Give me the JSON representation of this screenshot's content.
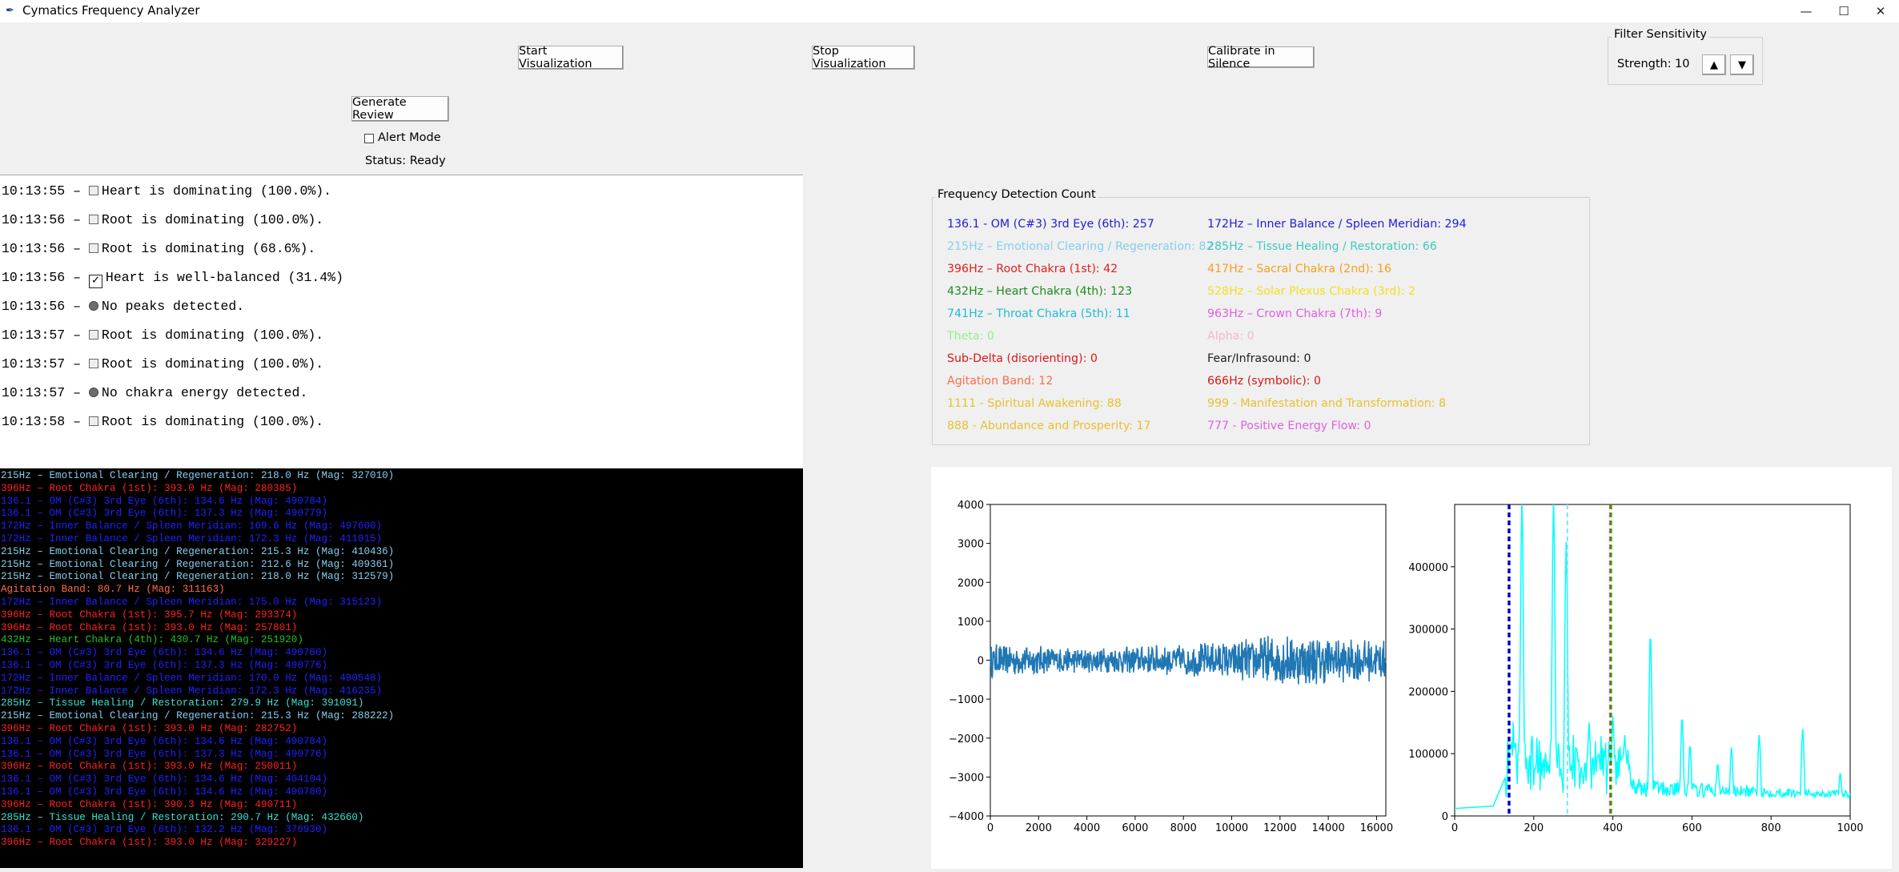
{
  "window": {
    "title": "Cymatics Frequency Analyzer",
    "controls": {
      "minimize": "—",
      "maximize": "☐",
      "close": "✕"
    }
  },
  "toolbar": {
    "start_label": "Start Visualization",
    "stop_label": "Stop Visualization",
    "calibrate_label": "Calibrate in Silence",
    "review_label": "Generate Review",
    "alert_label": "Alert Mode",
    "status": "Status: Ready"
  },
  "filter": {
    "title": "Filter Sensitivity",
    "strength_label": "Strength:",
    "strength_value": "10",
    "up_label": "▲",
    "down_label": "▼"
  },
  "log": [
    {
      "time": "10:13:55 –",
      "icon": "square",
      "text": "Heart is dominating (100.0%)."
    },
    {
      "time": "10:13:56 –",
      "icon": "square",
      "text": "Root is dominating (100.0%)."
    },
    {
      "time": "10:13:56 –",
      "icon": "square",
      "text": "Root is dominating (68.6%)."
    },
    {
      "time": "10:13:56 –",
      "icon": "check",
      "text": "Heart is well-balanced (31.4%)"
    },
    {
      "time": "10:13:56 –",
      "icon": "dot",
      "text": "No peaks detected."
    },
    {
      "time": "10:13:57 –",
      "icon": "square",
      "text": "Root is dominating (100.0%)."
    },
    {
      "time": "10:13:57 –",
      "icon": "square",
      "text": "Root is dominating (100.0%)."
    },
    {
      "time": "10:13:57 –",
      "icon": "dot",
      "text": "No chakra energy detected."
    },
    {
      "time": "10:13:58 –",
      "icon": "square",
      "text": "Root is dominating (100.0%)."
    }
  ],
  "console": [
    {
      "text": "215Hz – Emotional Clearing / Regeneration: 218.0 Hz (Mag: 327010)",
      "color": "#87ceeb"
    },
    {
      "text": "396Hz – Root Chakra (1st): 393.0 Hz (Mag: 280385)",
      "color": "#ff2020"
    },
    {
      "text": "136.1 – OM (C#3) 3rd Eye (6th): 134.6 Hz (Mag: 490784)",
      "color": "#2020ff"
    },
    {
      "text": "136.1 – OM (C#3) 3rd Eye (6th): 137.3 Hz (Mag: 490779)",
      "color": "#2020ff"
    },
    {
      "text": "172Hz – Inner Balance / Spleen Meridian: 169.6 Hz (Mag: 497600)",
      "color": "#2020ff"
    },
    {
      "text": "172Hz – Inner Balance / Spleen Meridian: 172.3 Hz (Mag: 411015)",
      "color": "#2020ff"
    },
    {
      "text": "215Hz – Emotional Clearing / Regeneration: 215.3 Hz (Mag: 410436)",
      "color": "#87ceeb"
    },
    {
      "text": "215Hz – Emotional Clearing / Regeneration: 212.6 Hz (Mag: 409361)",
      "color": "#87ceeb"
    },
    {
      "text": "215Hz – Emotional Clearing / Regeneration: 218.0 Hz (Mag: 312579)",
      "color": "#87ceeb"
    },
    {
      "text": "Agitation Band: 80.7 Hz (Mag: 311163)",
      "color": "#ff6b4a"
    },
    {
      "text": "172Hz – Inner Balance / Spleen Meridian: 175.0 Hz (Mag: 315123)",
      "color": "#2020ff"
    },
    {
      "text": "396Hz – Root Chakra (1st): 395.7 Hz (Mag: 293374)",
      "color": "#ff2020"
    },
    {
      "text": "396Hz – Root Chakra (1st): 393.0 Hz (Mag: 257801)",
      "color": "#ff2020"
    },
    {
      "text": "432Hz – Heart Chakra (4th): 430.7 Hz (Mag: 251920)",
      "color": "#22c022"
    },
    {
      "text": "136.1 – OM (C#3) 3rd Eye (6th): 134.6 Hz (Mag: 490780)",
      "color": "#2020ff"
    },
    {
      "text": "136.1 – OM (C#3) 3rd Eye (6th): 137.3 Hz (Mag: 490776)",
      "color": "#2020ff"
    },
    {
      "text": "172Hz – Inner Balance / Spleen Meridian: 170.0 Hz (Mag: 490548)",
      "color": "#2020ff"
    },
    {
      "text": "172Hz – Inner Balance / Spleen Meridian: 172.3 Hz (Mag: 416235)",
      "color": "#2020ff"
    },
    {
      "text": "285Hz – Tissue Healing / Restoration: 279.9 Hz (Mag: 391091)",
      "color": "#40e0d0"
    },
    {
      "text": "215Hz – Emotional Clearing / Regeneration: 215.3 Hz (Mag: 288222)",
      "color": "#87ceeb"
    },
    {
      "text": "396Hz – Root Chakra (1st): 393.0 Hz (Mag: 282752)",
      "color": "#ff2020"
    },
    {
      "text": "136.1 – OM (C#3) 3rd Eye (6th): 134.6 Hz (Mag: 490784)",
      "color": "#2020ff"
    },
    {
      "text": "136.1 – OM (C#3) 3rd Eye (6th): 137.3 Hz (Mag: 490776)",
      "color": "#2020ff"
    },
    {
      "text": "396Hz – Root Chakra (1st): 393.0 Hz (Mag: 250011)",
      "color": "#ff2020"
    },
    {
      "text": "136.1 – OM (C#3) 3rd Eye (6th): 134.6 Hz (Mag: 404104)",
      "color": "#2020ff"
    },
    {
      "text": "136.1 – OM (C#3) 3rd Eye (6th): 134.6 Hz (Mag: 490780)",
      "color": "#2020ff"
    },
    {
      "text": "396Hz – Root Chakra (1st): 390.3 Hz (Mag: 490711)",
      "color": "#ff2020"
    },
    {
      "text": "285Hz – Tissue Healing / Restoration: 290.7 Hz (Mag: 432660)",
      "color": "#40e0d0"
    },
    {
      "text": "136.1 – OM (C#3) 3rd Eye (6th): 132.2 Hz (Mag: 376930)",
      "color": "#2020ff"
    },
    {
      "text": "396Hz – Root Chakra (1st): 393.0 Hz (Mag: 329227)",
      "color": "#ff2020"
    }
  ],
  "frequency": {
    "title": "Frequency Detection Count",
    "left": [
      {
        "text": "136.1 - OM (C#3) 3rd Eye (6th): 257",
        "color": "#1f1fd0"
      },
      {
        "text": "215Hz – Emotional Clearing / Regeneration: 82",
        "color": "#87ceeb"
      },
      {
        "text": "396Hz – Root Chakra (1st): 42",
        "color": "#e02020"
      },
      {
        "text": "432Hz – Heart Chakra (4th): 123",
        "color": "#1e8c1e"
      },
      {
        "text": "741Hz – Throat Chakra (5th): 11",
        "color": "#1fbcd4"
      },
      {
        "text": "Theta: 0",
        "color": "#90ee90"
      },
      {
        "text": "Sub-Delta (disorienting): 0",
        "color": "#d81818"
      },
      {
        "text": "Agitation Band: 12",
        "color": "#ff6b4a"
      },
      {
        "text": "1111 - Spiritual Awakening: 88",
        "color": "#e8c030"
      },
      {
        "text": "888 - Abundance and Prosperity: 17",
        "color": "#e8c030"
      }
    ],
    "right": [
      {
        "text": "172Hz – Inner Balance / Spleen Meridian: 294",
        "color": "#1f1fd0"
      },
      {
        "text": "285Hz – Tissue Healing / Restoration: 66",
        "color": "#40c8c0"
      },
      {
        "text": "417Hz – Sacral Chakra (2nd): 16",
        "color": "#f5a020"
      },
      {
        "text": "528Hz – Solar Plexus Chakra (3rd): 2",
        "color": "#f0e020"
      },
      {
        "text": "963Hz – Crown Chakra (7th): 9",
        "color": "#e060e0"
      },
      {
        "text": "Alpha: 0",
        "color": "#f4b8c8"
      },
      {
        "text": "Fear/Infrasound: 0",
        "color": "#202020"
      },
      {
        "text": "666Hz (symbolic): 0",
        "color": "#d81818"
      },
      {
        "text": "999 - Manifestation and Transformation: 8",
        "color": "#e8c030"
      },
      {
        "text": "777 - Positive Energy Flow: 0",
        "color": "#e060e0"
      }
    ]
  },
  "chart_data": [
    {
      "type": "line",
      "name": "waveform",
      "xlim": [
        0,
        16384
      ],
      "ylim": [
        -4000,
        4000
      ],
      "xticks": [
        "0",
        "2000",
        "4000",
        "6000",
        "8000",
        "10000",
        "12000",
        "14000",
        "16000"
      ],
      "yticks": [
        "4000",
        "3000",
        "2000",
        "1000",
        "0",
        "−1000",
        "−2000",
        "−3000",
        "−4000"
      ],
      "color": "#1f77b4",
      "amplitude_envelope": [
        {
          "x": 0,
          "a": 450
        },
        {
          "x": 4000,
          "a": 320
        },
        {
          "x": 8000,
          "a": 430
        },
        {
          "x": 10000,
          "a": 500
        },
        {
          "x": 12000,
          "a": 700
        },
        {
          "x": 14000,
          "a": 620
        },
        {
          "x": 16384,
          "a": 520
        }
      ]
    },
    {
      "type": "line",
      "name": "spectrum",
      "xlim": [
        0,
        1000
      ],
      "ylim": [
        0,
        500000
      ],
      "xticks": [
        "0",
        "200",
        "400",
        "600",
        "800",
        "1000"
      ],
      "yticks": [
        "400000",
        "300000",
        "200000",
        "100000",
        "0"
      ],
      "color": "#00ffff",
      "peaks": [
        {
          "x": 170,
          "y": 510000
        },
        {
          "x": 250,
          "y": 510000
        },
        {
          "x": 282,
          "y": 440000
        },
        {
          "x": 340,
          "y": 150000
        },
        {
          "x": 400,
          "y": 160000
        },
        {
          "x": 430,
          "y": 130000
        },
        {
          "x": 495,
          "y": 295000
        },
        {
          "x": 575,
          "y": 160000
        },
        {
          "x": 595,
          "y": 115000
        },
        {
          "x": 665,
          "y": 85000
        },
        {
          "x": 700,
          "y": 110000
        },
        {
          "x": 770,
          "y": 130000
        },
        {
          "x": 880,
          "y": 140000
        },
        {
          "x": 975,
          "y": 70000
        }
      ],
      "markers": [
        {
          "x": 136.1,
          "color": "#0000cc",
          "style": "dashed"
        },
        {
          "x": 139,
          "color": "#0000cc",
          "style": "dashed"
        },
        {
          "x": 285,
          "color": "#7fdfff",
          "style": "dashed"
        },
        {
          "x": 393,
          "color": "#ff2020",
          "style": "dashed"
        },
        {
          "x": 396,
          "color": "#00c000",
          "style": "dashed"
        }
      ]
    }
  ]
}
